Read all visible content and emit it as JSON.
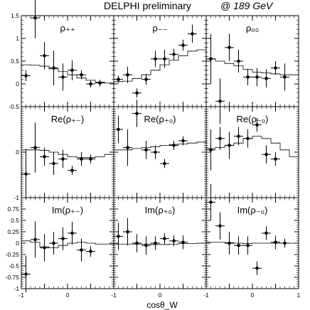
{
  "header": {
    "title": "DELPHI preliminary",
    "energy": "@ 189 GeV"
  },
  "chart_data": {
    "type": "scatter",
    "title": "DELPHI preliminary   @ 189 GeV",
    "xlabel": "cosθ_W",
    "xlim": [
      -1,
      1
    ],
    "ylim": [
      -1,
      1.5
    ],
    "grid": false,
    "x_ticks": [
      "-1",
      "0",
      "1"
    ],
    "y_ticks_top_row": [
      "1.5",
      "1",
      "0.5",
      "0",
      "-0.5"
    ],
    "y_ticks_mid_row": [
      "1",
      "0",
      "-1"
    ],
    "y_ticks_bottom_row": [
      "1",
      "0.75",
      "0.5",
      "0.25",
      "0",
      "-0.25",
      "-0.5",
      "-0.75",
      "-1"
    ],
    "panels": [
      {
        "label": "ρ₊₊",
        "data": [
          {
            "x": -0.9,
            "y": 0.18,
            "err": 0.12
          },
          {
            "x": -0.7,
            "y": 1.45,
            "err": 0.45
          },
          {
            "x": -0.5,
            "y": 0.62,
            "err": 0.3
          },
          {
            "x": -0.3,
            "y": 0.35,
            "err": 0.38
          },
          {
            "x": -0.1,
            "y": 0.15,
            "err": 0.3
          },
          {
            "x": 0.1,
            "y": 0.3,
            "err": 0.22
          },
          {
            "x": 0.3,
            "y": 0.2,
            "err": 0.1
          },
          {
            "x": 0.5,
            "y": 0.0,
            "err": 0.08
          },
          {
            "x": 0.7,
            "y": 0.02,
            "err": 0.07
          }
        ],
        "model": [
          0.42,
          0.41,
          0.39,
          0.33,
          0.27,
          0.2,
          0.13,
          0.08,
          0.04,
          0.02
        ]
      },
      {
        "label": "ρ₋₋",
        "data": [
          {
            "x": -0.9,
            "y": 0.1,
            "err": 0.08
          },
          {
            "x": -0.7,
            "y": 0.2,
            "err": 0.18
          },
          {
            "x": -0.5,
            "y": -0.2,
            "err": 0.1
          },
          {
            "x": -0.3,
            "y": 0.1,
            "err": 0.12
          },
          {
            "x": -0.1,
            "y": 0.55,
            "err": 0.18
          },
          {
            "x": 0.1,
            "y": 0.55,
            "err": 0.2
          },
          {
            "x": 0.3,
            "y": 0.65,
            "err": 0.12
          },
          {
            "x": 0.5,
            "y": 0.85,
            "err": 0.12
          },
          {
            "x": 0.7,
            "y": 1.1,
            "err": 0.2
          }
        ],
        "model": [
          0.05,
          0.06,
          0.12,
          0.2,
          0.3,
          0.42,
          0.52,
          0.62,
          0.72,
          0.75
        ]
      },
      {
        "label": "ρ₀₀",
        "data": [
          {
            "x": -0.9,
            "y": 0.55,
            "err": 0.55
          },
          {
            "x": -0.7,
            "y": -0.38,
            "err": 0.5
          },
          {
            "x": -0.5,
            "y": 0.8,
            "err": 0.3
          },
          {
            "x": -0.3,
            "y": 0.5,
            "err": 0.25
          },
          {
            "x": -0.1,
            "y": 0.15,
            "err": 0.18
          },
          {
            "x": 0.1,
            "y": 0.15,
            "err": 0.2
          },
          {
            "x": 0.3,
            "y": 0.12,
            "err": 0.2
          },
          {
            "x": 0.5,
            "y": 0.35,
            "err": 0.15
          },
          {
            "x": 0.7,
            "y": 0.15,
            "err": 0.3
          }
        ],
        "model": [
          0.55,
          0.5,
          0.45,
          0.4,
          0.32,
          0.26,
          0.24,
          0.22,
          0.2,
          0.2
        ]
      },
      {
        "label": "Re(ρ₊₋)",
        "data": [
          {
            "x": -0.9,
            "y": -0.48,
            "err": 0.55
          },
          {
            "x": -0.7,
            "y": 0.1,
            "err": 0.55
          },
          {
            "x": -0.5,
            "y": -0.1,
            "err": 0.2
          },
          {
            "x": -0.3,
            "y": -0.25,
            "err": 0.25
          },
          {
            "x": -0.1,
            "y": -0.15,
            "err": 0.2
          },
          {
            "x": 0.1,
            "y": -0.4,
            "err": 0.1
          },
          {
            "x": 0.3,
            "y": -0.15,
            "err": 0.15
          },
          {
            "x": 0.5,
            "y": -0.15,
            "err": 0.1
          }
        ],
        "model": [
          0.05,
          0.05,
          0.04,
          0.0,
          -0.05,
          -0.1,
          -0.12,
          -0.12,
          -0.1,
          -0.05
        ]
      },
      {
        "label": "Re(ρ₊₀)",
        "data": [
          {
            "x": -0.9,
            "y": 0.5,
            "err": 0.3
          },
          {
            "x": -0.7,
            "y": 0.1,
            "err": 0.4
          },
          {
            "x": -0.5,
            "y": 0.85,
            "err": 0.3
          },
          {
            "x": -0.3,
            "y": 0.05,
            "err": 0.2
          },
          {
            "x": -0.1,
            "y": 0.0,
            "err": 0.15
          },
          {
            "x": 0.1,
            "y": -0.25,
            "err": 0.1
          },
          {
            "x": 0.3,
            "y": 0.15,
            "err": 0.1
          },
          {
            "x": 0.5,
            "y": 0.25,
            "err": 0.1
          }
        ],
        "model": [
          0.05,
          0.05,
          0.08,
          0.1,
          0.12,
          0.15,
          0.17,
          0.18,
          0.2,
          0.22
        ]
      },
      {
        "label": "Re(ρ₋₀)",
        "data": [
          {
            "x": -0.9,
            "y": 0.05,
            "err": 0.45
          },
          {
            "x": -0.7,
            "y": 0.3,
            "err": 0.25
          },
          {
            "x": -0.5,
            "y": 0.15,
            "err": 0.3
          },
          {
            "x": -0.3,
            "y": 0.35,
            "err": 0.2
          },
          {
            "x": -0.1,
            "y": 0.3,
            "err": 0.2
          },
          {
            "x": 0.1,
            "y": 0.6,
            "err": 0.15
          },
          {
            "x": 0.3,
            "y": -0.05,
            "err": 0.2
          },
          {
            "x": 0.5,
            "y": -0.15,
            "err": 0.15
          }
        ],
        "model": [
          0.08,
          0.1,
          0.15,
          0.2,
          0.3,
          0.35,
          0.3,
          0.2,
          0.05,
          -0.1
        ]
      },
      {
        "label": "Im(ρ₊₋)",
        "data": [
          {
            "x": -0.9,
            "y": -0.68,
            "err": 0.4
          },
          {
            "x": -0.7,
            "y": 0.08,
            "err": 0.4
          },
          {
            "x": -0.5,
            "y": -0.1,
            "err": 0.3
          },
          {
            "x": -0.3,
            "y": 0.0,
            "err": 0.25
          },
          {
            "x": -0.1,
            "y": 0.1,
            "err": 0.25
          },
          {
            "x": 0.1,
            "y": 0.22,
            "err": 0.25
          },
          {
            "x": 0.3,
            "y": -0.15,
            "err": 0.25
          },
          {
            "x": 0.5,
            "y": -0.18,
            "err": 0.12
          }
        ],
        "model": [
          0.05,
          0.02,
          -0.08,
          -0.1,
          -0.05,
          0.0,
          0.02,
          0.0,
          -0.02,
          -0.02
        ]
      },
      {
        "label": "Im(ρ₊₀)",
        "data": [
          {
            "x": -0.9,
            "y": 0.15,
            "err": 0.3
          },
          {
            "x": -0.7,
            "y": 0.25,
            "err": 0.3
          },
          {
            "x": -0.5,
            "y": 0.0,
            "err": 0.2
          },
          {
            "x": -0.3,
            "y": -0.05,
            "err": 0.2
          },
          {
            "x": -0.1,
            "y": 0.0,
            "err": 0.15
          },
          {
            "x": 0.1,
            "y": 0.1,
            "err": 0.12
          },
          {
            "x": 0.3,
            "y": 0.05,
            "err": 0.12
          },
          {
            "x": 0.5,
            "y": 0.02,
            "err": 0.15
          }
        ],
        "model": [
          -0.02,
          -0.02,
          -0.02,
          -0.02,
          -0.03,
          -0.03,
          -0.02,
          -0.01,
          -0.01,
          0.0
        ]
      },
      {
        "label": "Im(ρ₋₀)",
        "data": [
          {
            "x": -0.9,
            "y": 0.9,
            "err": 0.4
          },
          {
            "x": -0.7,
            "y": 0.38,
            "err": 0.3
          },
          {
            "x": -0.5,
            "y": 0.0,
            "err": 0.25
          },
          {
            "x": -0.3,
            "y": -0.05,
            "err": 0.2
          },
          {
            "x": -0.1,
            "y": -0.05,
            "err": 0.2
          },
          {
            "x": 0.1,
            "y": -0.55,
            "err": 0.15
          },
          {
            "x": 0.3,
            "y": 0.22,
            "err": 0.15
          },
          {
            "x": 0.5,
            "y": 0.02,
            "err": 0.15
          },
          {
            "x": 0.7,
            "y": 0.0,
            "err": 0.1
          }
        ],
        "model": [
          0.02,
          0.02,
          0.01,
          0.0,
          -0.01,
          0.0,
          0.0,
          0.0,
          0.0,
          0.0
        ]
      }
    ]
  }
}
